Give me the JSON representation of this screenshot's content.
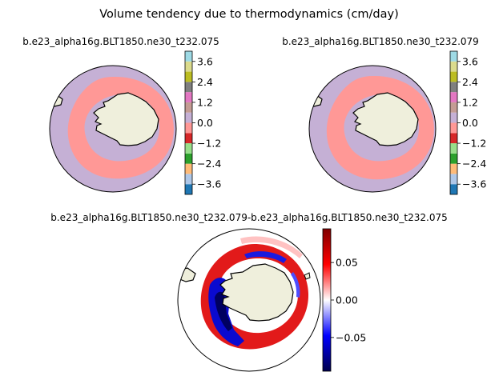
{
  "figure": {
    "suptitle": "Volume tendency due to thermodynamics (cm/day)"
  },
  "chart_data": [
    {
      "type": "heatmap",
      "projection": "south-polar-stereographic",
      "title": "b.e23_alpha16g.BLT1850.ne30_t232.075",
      "colorbar": {
        "kind": "discrete",
        "boundaries": [
          -4.2,
          -3.6,
          -3.0,
          -2.4,
          -1.8,
          -1.2,
          -0.6,
          0.0,
          0.6,
          1.2,
          1.8,
          2.4,
          3.0,
          3.6,
          4.2
        ],
        "colors": [
          "#1f77b4",
          "#aec7e8",
          "#ffbb78",
          "#2ca02c",
          "#98df8a",
          "#d62728",
          "#ff9896",
          "#c5b0d5",
          "#c49c94",
          "#e377c2",
          "#7f7f7f",
          "#bcbd22",
          "#dbdb8d",
          "#9edae5"
        ],
        "tick_labels": [
          "-3.6",
          "-2.4",
          "-1.2",
          "0.0",
          "1.2",
          "2.4",
          "3.6"
        ]
      },
      "dominant_ocean_color": "#c5b0d5",
      "ring_color": "#ff9896",
      "land_color": "#efefdc"
    },
    {
      "type": "heatmap",
      "projection": "south-polar-stereographic",
      "title": "b.e23_alpha16g.BLT1850.ne30_t232.079",
      "colorbar": {
        "kind": "discrete",
        "boundaries": [
          -4.2,
          -3.6,
          -3.0,
          -2.4,
          -1.8,
          -1.2,
          -0.6,
          0.0,
          0.6,
          1.2,
          1.8,
          2.4,
          3.0,
          3.6,
          4.2
        ],
        "colors": [
          "#1f77b4",
          "#aec7e8",
          "#ffbb78",
          "#2ca02c",
          "#98df8a",
          "#d62728",
          "#ff9896",
          "#c5b0d5",
          "#c49c94",
          "#e377c2",
          "#7f7f7f",
          "#bcbd22",
          "#dbdb8d",
          "#9edae5"
        ],
        "tick_labels": [
          "-3.6",
          "-2.4",
          "-1.2",
          "0.0",
          "1.2",
          "2.4",
          "3.6"
        ]
      },
      "dominant_ocean_color": "#c5b0d5",
      "ring_color": "#ff9896",
      "land_color": "#efefdc"
    },
    {
      "type": "heatmap",
      "projection": "south-polar-stereographic",
      "title": "b.e23_alpha16g.BLT1850.ne30_t232.079-b.e23_alpha16g.BLT1850.ne30_t232.075",
      "colorbar": {
        "kind": "continuous",
        "colormap": "seismic",
        "range": [
          -0.095,
          0.095
        ],
        "ticks": [
          -0.05,
          0.0,
          0.05
        ],
        "tick_labels": [
          "-0.05",
          "0.00",
          "0.05"
        ]
      },
      "land_color": "#efefdc"
    }
  ]
}
